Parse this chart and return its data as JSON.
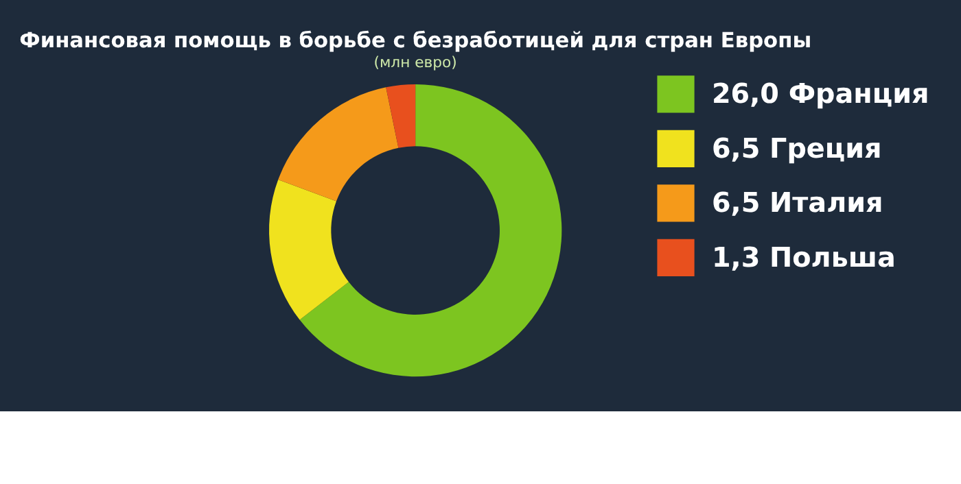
{
  "chart_data": {
    "type": "donut",
    "title": "Финансовая помощь в борьбе с безработицей для стран Европы",
    "subtitle": "(млн евро)",
    "categories": [
      "Франция",
      "Греция",
      "Италия",
      "Польша"
    ],
    "values": [
      26.0,
      6.5,
      6.5,
      1.3
    ],
    "value_labels": [
      "26,0",
      "6,5",
      "6,5",
      "1,3"
    ],
    "colors": [
      "#7dc520",
      "#f0e21e",
      "#f59a1a",
      "#e8501e"
    ],
    "legend": "right"
  }
}
